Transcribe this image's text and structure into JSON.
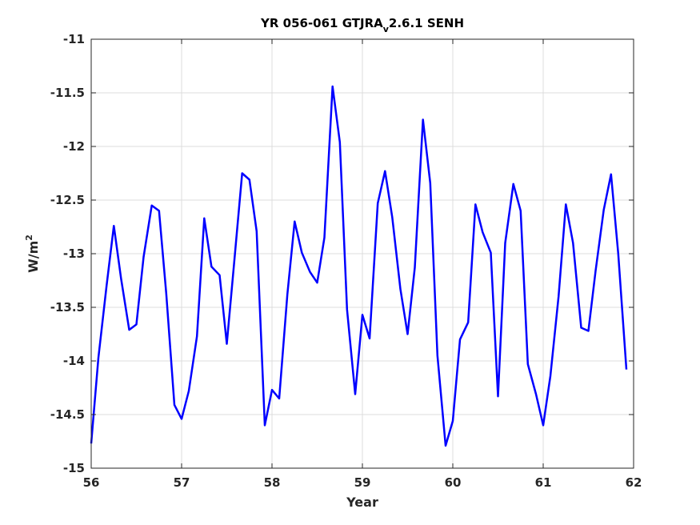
{
  "chart_data": {
    "type": "line",
    "title": "YR 056-061 GTJRA",
    "title_subscript": "v",
    "title_suffix": "2.6.1 SENH",
    "xlabel": "Year",
    "ylabel": "W/m",
    "ylabel_superscript": "2",
    "xlim": [
      56,
      62
    ],
    "ylim": [
      -15,
      -11
    ],
    "xticks": [
      "56",
      "57",
      "58",
      "59",
      "60",
      "61",
      "62"
    ],
    "yticks": [
      "-11",
      "-11.5",
      "-12",
      "-12.5",
      "-13",
      "-13.5",
      "-14",
      "-14.5",
      "-15"
    ],
    "grid": true,
    "line_color": "#0000ff",
    "series": [
      {
        "x": [
          56.0,
          56.08,
          56.17,
          56.25,
          56.33,
          56.42,
          56.5,
          56.58,
          56.67,
          56.75,
          56.83,
          56.92,
          57.0,
          57.08,
          57.17,
          57.25,
          57.33,
          57.42,
          57.5,
          57.58,
          57.67,
          57.75,
          57.83,
          57.92,
          58.0,
          58.08,
          58.17,
          58.25,
          58.33,
          58.42,
          58.5,
          58.58,
          58.67,
          58.75,
          58.83,
          58.92,
          59.0,
          59.08,
          59.17,
          59.25,
          59.33,
          59.42,
          59.5,
          59.58,
          59.67,
          59.75,
          59.83,
          59.92,
          60.0,
          60.08,
          60.17,
          60.25,
          60.33,
          60.42,
          60.5,
          60.58,
          60.67,
          60.75,
          60.83,
          60.92,
          61.0,
          61.08,
          61.17,
          61.25,
          61.33,
          61.42,
          61.5,
          61.58,
          61.67,
          61.75,
          61.83,
          61.92
        ],
        "values": [
          -14.77,
          -13.97,
          -13.3,
          -12.74,
          -13.23,
          -13.71,
          -13.66,
          -13.03,
          -12.55,
          -12.6,
          -13.37,
          -14.41,
          -14.54,
          -14.28,
          -13.77,
          -12.67,
          -13.12,
          -13.2,
          -13.84,
          -13.1,
          -12.25,
          -12.31,
          -12.79,
          -14.6,
          -14.27,
          -14.35,
          -13.38,
          -12.7,
          -12.99,
          -13.17,
          -13.27,
          -12.85,
          -11.44,
          -11.96,
          -13.52,
          -14.31,
          -13.57,
          -13.79,
          -12.53,
          -12.23,
          -12.66,
          -13.33,
          -13.75,
          -13.13,
          -11.75,
          -12.34,
          -13.95,
          -14.79,
          -14.56,
          -13.8,
          -13.64,
          -12.54,
          -12.8,
          -12.99,
          -14.33,
          -12.9,
          -12.35,
          -12.6,
          -14.03,
          -14.31,
          -14.6,
          -14.14,
          -13.4,
          -12.54,
          -12.9,
          -13.69,
          -13.72,
          -13.16,
          -12.59,
          -12.26,
          -13.0,
          -14.08
        ]
      }
    ]
  }
}
